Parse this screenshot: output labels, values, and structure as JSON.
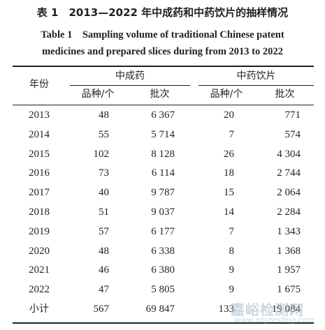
{
  "caption": {
    "cn": "表 1　2013—2022 年中成药和中药饮片的抽样情况",
    "en_line1": "Table 1　Sampling volume of traditional Chinese patent",
    "en_line2": "medicines and prepared slices during from 2013 to 2022"
  },
  "header": {
    "year": "年份",
    "group1": "中成药",
    "group2": "中药饮片",
    "varieties": "品种/个",
    "batches": "批次"
  },
  "rows": [
    {
      "year": "2013",
      "pm_var": "48",
      "pm_batch": "6 367",
      "ps_var": "20",
      "ps_batch": "771"
    },
    {
      "year": "2014",
      "pm_var": "55",
      "pm_batch": "5 714",
      "ps_var": "7",
      "ps_batch": "574"
    },
    {
      "year": "2015",
      "pm_var": "102",
      "pm_batch": "8 128",
      "ps_var": "26",
      "ps_batch": "4 304"
    },
    {
      "year": "2016",
      "pm_var": "73",
      "pm_batch": "6 114",
      "ps_var": "18",
      "ps_batch": "2 744"
    },
    {
      "year": "2017",
      "pm_var": "40",
      "pm_batch": "9 787",
      "ps_var": "15",
      "ps_batch": "2 064"
    },
    {
      "year": "2018",
      "pm_var": "51",
      "pm_batch": "9 037",
      "ps_var": "14",
      "ps_batch": "2 284"
    },
    {
      "year": "2019",
      "pm_var": "57",
      "pm_batch": "6 177",
      "ps_var": "7",
      "ps_batch": "1 343"
    },
    {
      "year": "2020",
      "pm_var": "48",
      "pm_batch": "6 338",
      "ps_var": "8",
      "ps_batch": "1 368"
    },
    {
      "year": "2021",
      "pm_var": "46",
      "pm_batch": "6 380",
      "ps_var": "9",
      "ps_batch": "1 957"
    },
    {
      "year": "2022",
      "pm_var": "47",
      "pm_batch": "5 805",
      "ps_var": "9",
      "ps_batch": "1 675"
    }
  ],
  "total": {
    "year": "小计",
    "pm_var": "567",
    "pm_batch": "69 847",
    "ps_var": "133",
    "ps_batch": "19 084"
  },
  "watermark": {
    "cn": "嘉峪检测网",
    "url": "www.anytesting.com"
  }
}
